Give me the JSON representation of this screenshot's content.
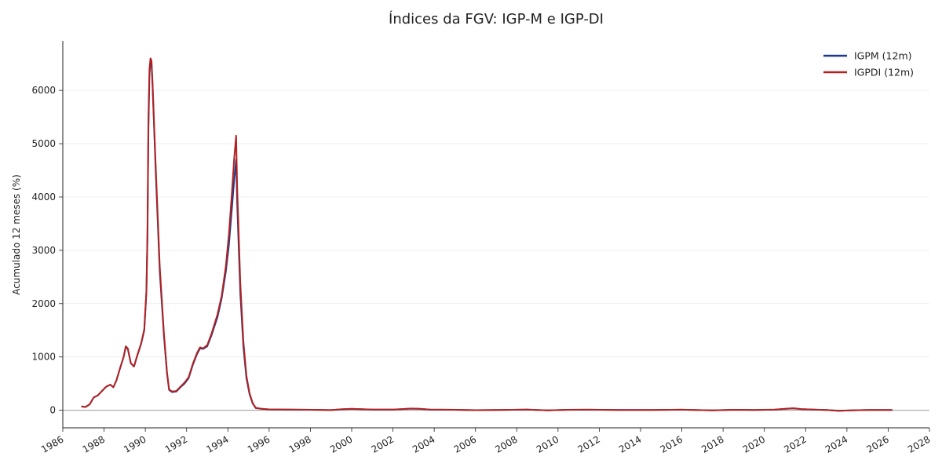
{
  "chart_data": {
    "type": "line",
    "title": "Índices da FGV: IGP-M e IGP-DI",
    "xlabel": "",
    "ylabel": "Acumulado 12 meses (%)",
    "xlim": [
      1986,
      2028
    ],
    "ylim": [
      -330,
      6930
    ],
    "x_ticks": [
      "1986",
      "1988",
      "1990",
      "1992",
      "1994",
      "1996",
      "1998",
      "2000",
      "2002",
      "2004",
      "2006",
      "2008",
      "2010",
      "2012",
      "2014",
      "2016",
      "2018",
      "2020",
      "2022",
      "2024",
      "2026",
      "2028"
    ],
    "y_ticks": [
      0,
      1000,
      2000,
      3000,
      4000,
      5000,
      6000
    ],
    "grid": "horizontal",
    "zero_line": true,
    "legend_position": "top-right",
    "series": [
      {
        "name": "IGPM (12m)",
        "color": "#1f3a8a",
        "points": [
          [
            1986.9,
            70
          ],
          [
            1987.1,
            60
          ],
          [
            1987.3,
            110
          ],
          [
            1987.5,
            240
          ],
          [
            1987.7,
            280
          ],
          [
            1987.9,
            360
          ],
          [
            1988.1,
            440
          ],
          [
            1988.3,
            480
          ],
          [
            1988.45,
            430
          ],
          [
            1988.6,
            560
          ],
          [
            1988.8,
            820
          ],
          [
            1988.95,
            1000
          ],
          [
            1989.05,
            1190
          ],
          [
            1989.15,
            1150
          ],
          [
            1989.3,
            880
          ],
          [
            1989.45,
            820
          ],
          [
            1989.6,
            1010
          ],
          [
            1989.8,
            1250
          ],
          [
            1989.95,
            1500
          ],
          [
            1990.05,
            2200
          ],
          [
            1990.1,
            3200
          ],
          [
            1990.15,
            5300
          ],
          [
            1990.2,
            6300
          ],
          [
            1990.25,
            6550
          ],
          [
            1990.3,
            6500
          ],
          [
            1990.35,
            6100
          ],
          [
            1990.5,
            4500
          ],
          [
            1990.7,
            2600
          ],
          [
            1990.9,
            1400
          ],
          [
            1991.05,
            700
          ],
          [
            1991.15,
            380
          ],
          [
            1991.3,
            340
          ],
          [
            1991.5,
            350
          ],
          [
            1991.7,
            430
          ],
          [
            1991.9,
            500
          ],
          [
            1992.1,
            600
          ],
          [
            1992.3,
            850
          ],
          [
            1992.5,
            1050
          ],
          [
            1992.65,
            1160
          ],
          [
            1992.8,
            1150
          ],
          [
            1993.0,
            1200
          ],
          [
            1993.2,
            1400
          ],
          [
            1993.5,
            1750
          ],
          [
            1993.7,
            2100
          ],
          [
            1993.9,
            2600
          ],
          [
            1994.05,
            3100
          ],
          [
            1994.2,
            3800
          ],
          [
            1994.3,
            4300
          ],
          [
            1994.4,
            4700
          ],
          [
            1994.45,
            3900
          ],
          [
            1994.6,
            2200
          ],
          [
            1994.75,
            1200
          ],
          [
            1994.9,
            600
          ],
          [
            1995.05,
            300
          ],
          [
            1995.2,
            130
          ],
          [
            1995.35,
            40
          ],
          [
            1995.6,
            28
          ],
          [
            1996.0,
            15
          ],
          [
            1998.0,
            8
          ],
          [
            1999.0,
            3
          ],
          [
            1999.5,
            18
          ],
          [
            2000.0,
            25
          ],
          [
            2001.0,
            12
          ],
          [
            2002.0,
            12
          ],
          [
            2002.5,
            22
          ],
          [
            2002.9,
            30
          ],
          [
            2003.3,
            25
          ],
          [
            2003.8,
            12
          ],
          [
            2004.3,
            10
          ],
          [
            2005.0,
            8
          ],
          [
            2006.0,
            2
          ],
          [
            2007.0,
            5
          ],
          [
            2008.5,
            12
          ],
          [
            2009.5,
            -2
          ],
          [
            2010.5,
            8
          ],
          [
            2011.5,
            10
          ],
          [
            2013.0,
            5
          ],
          [
            2014.5,
            4
          ],
          [
            2016.0,
            10
          ],
          [
            2017.5,
            -2
          ],
          [
            2018.5,
            8
          ],
          [
            2019.5,
            6
          ],
          [
            2020.5,
            10
          ],
          [
            2021.0,
            25
          ],
          [
            2021.4,
            35
          ],
          [
            2021.8,
            20
          ],
          [
            2022.5,
            10
          ],
          [
            2023.0,
            5
          ],
          [
            2023.6,
            -10
          ],
          [
            2024.2,
            -2
          ],
          [
            2025.0,
            5
          ],
          [
            2025.6,
            6
          ],
          [
            2026.2,
            4
          ]
        ]
      },
      {
        "name": "IGPDI (12m)",
        "color": "#b22222",
        "points": [
          [
            1986.9,
            70
          ],
          [
            1987.1,
            60
          ],
          [
            1987.3,
            110
          ],
          [
            1987.5,
            240
          ],
          [
            1987.7,
            280
          ],
          [
            1987.9,
            360
          ],
          [
            1988.1,
            440
          ],
          [
            1988.3,
            480
          ],
          [
            1988.45,
            430
          ],
          [
            1988.6,
            560
          ],
          [
            1988.8,
            820
          ],
          [
            1988.95,
            1000
          ],
          [
            1989.05,
            1200
          ],
          [
            1989.15,
            1160
          ],
          [
            1989.3,
            880
          ],
          [
            1989.45,
            820
          ],
          [
            1989.6,
            1020
          ],
          [
            1989.8,
            1260
          ],
          [
            1989.95,
            1520
          ],
          [
            1990.05,
            2250
          ],
          [
            1990.1,
            3300
          ],
          [
            1990.15,
            5500
          ],
          [
            1990.2,
            6400
          ],
          [
            1990.25,
            6600
          ],
          [
            1990.3,
            6560
          ],
          [
            1990.35,
            6150
          ],
          [
            1990.5,
            4600
          ],
          [
            1990.7,
            2700
          ],
          [
            1990.9,
            1450
          ],
          [
            1991.05,
            720
          ],
          [
            1991.15,
            390
          ],
          [
            1991.3,
            350
          ],
          [
            1991.5,
            360
          ],
          [
            1991.7,
            440
          ],
          [
            1991.9,
            520
          ],
          [
            1992.1,
            620
          ],
          [
            1992.3,
            870
          ],
          [
            1992.5,
            1070
          ],
          [
            1992.65,
            1180
          ],
          [
            1992.8,
            1160
          ],
          [
            1993.0,
            1220
          ],
          [
            1993.2,
            1430
          ],
          [
            1993.5,
            1800
          ],
          [
            1993.7,
            2150
          ],
          [
            1993.9,
            2700
          ],
          [
            1994.05,
            3300
          ],
          [
            1994.2,
            4100
          ],
          [
            1994.3,
            4700
          ],
          [
            1994.4,
            5150
          ],
          [
            1994.45,
            4200
          ],
          [
            1994.6,
            2400
          ],
          [
            1994.75,
            1300
          ],
          [
            1994.9,
            650
          ],
          [
            1995.05,
            320
          ],
          [
            1995.2,
            140
          ],
          [
            1995.35,
            45
          ],
          [
            1995.6,
            30
          ],
          [
            1996.0,
            16
          ],
          [
            1998.0,
            8
          ],
          [
            1999.0,
            3
          ],
          [
            1999.5,
            18
          ],
          [
            2000.0,
            26
          ],
          [
            2001.0,
            12
          ],
          [
            2002.0,
            12
          ],
          [
            2002.5,
            24
          ],
          [
            2002.9,
            32
          ],
          [
            2003.3,
            26
          ],
          [
            2003.8,
            12
          ],
          [
            2004.3,
            10
          ],
          [
            2005.0,
            8
          ],
          [
            2006.0,
            2
          ],
          [
            2007.0,
            5
          ],
          [
            2008.5,
            12
          ],
          [
            2009.5,
            -2
          ],
          [
            2010.5,
            9
          ],
          [
            2011.5,
            10
          ],
          [
            2013.0,
            5
          ],
          [
            2014.5,
            4
          ],
          [
            2016.0,
            10
          ],
          [
            2017.5,
            -2
          ],
          [
            2018.5,
            8
          ],
          [
            2019.5,
            6
          ],
          [
            2020.5,
            12
          ],
          [
            2021.0,
            28
          ],
          [
            2021.4,
            38
          ],
          [
            2021.8,
            22
          ],
          [
            2022.5,
            10
          ],
          [
            2023.0,
            5
          ],
          [
            2023.6,
            -12
          ],
          [
            2024.2,
            -2
          ],
          [
            2025.0,
            5
          ],
          [
            2025.6,
            6
          ],
          [
            2026.2,
            4
          ]
        ]
      }
    ]
  }
}
